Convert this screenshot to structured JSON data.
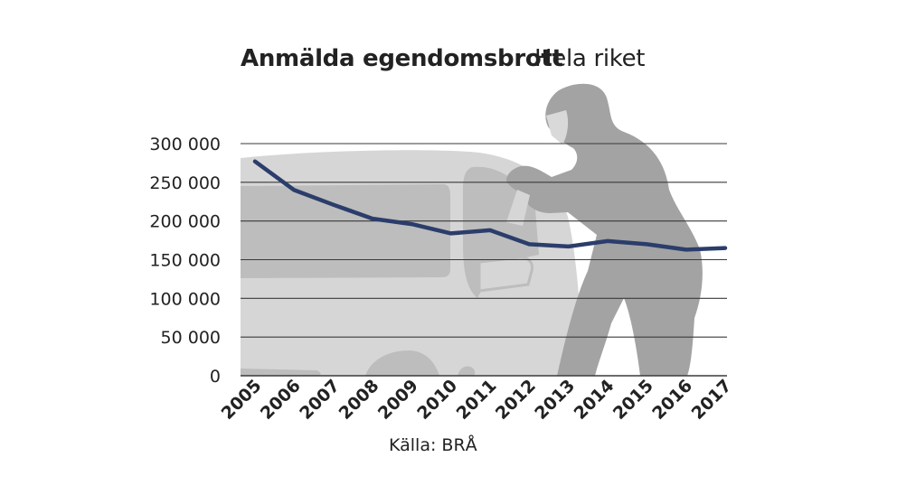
{
  "chart_data": {
    "type": "line",
    "title": "Anmälda egendomsbrott",
    "subtitle": "Hela riket",
    "source": "Källa: BRÅ",
    "x": [
      "2005",
      "2006",
      "2007",
      "2008",
      "2009",
      "2010",
      "2011",
      "2012",
      "2013",
      "2014",
      "2015",
      "2016",
      "2017"
    ],
    "series": [
      {
        "values": [
          277000,
          240000,
          221000,
          203000,
          196000,
          184000,
          188000,
          170000,
          167000,
          174000,
          170000,
          163000,
          165000
        ]
      }
    ],
    "yticks": [
      0,
      50000,
      100000,
      150000,
      200000,
      250000,
      300000
    ],
    "ytick_labels": [
      "0",
      "50 000",
      "100 000",
      "150 000",
      "200 000",
      "250 000",
      "300 000"
    ],
    "ylim": [
      0,
      300000
    ],
    "grid": true,
    "colors": {
      "line": "#2b3d6b",
      "grid": "#3a3a3a",
      "car_body": "#d6d6d6",
      "car_window": "#bdbdbd",
      "person": "#a3a3a3"
    }
  }
}
